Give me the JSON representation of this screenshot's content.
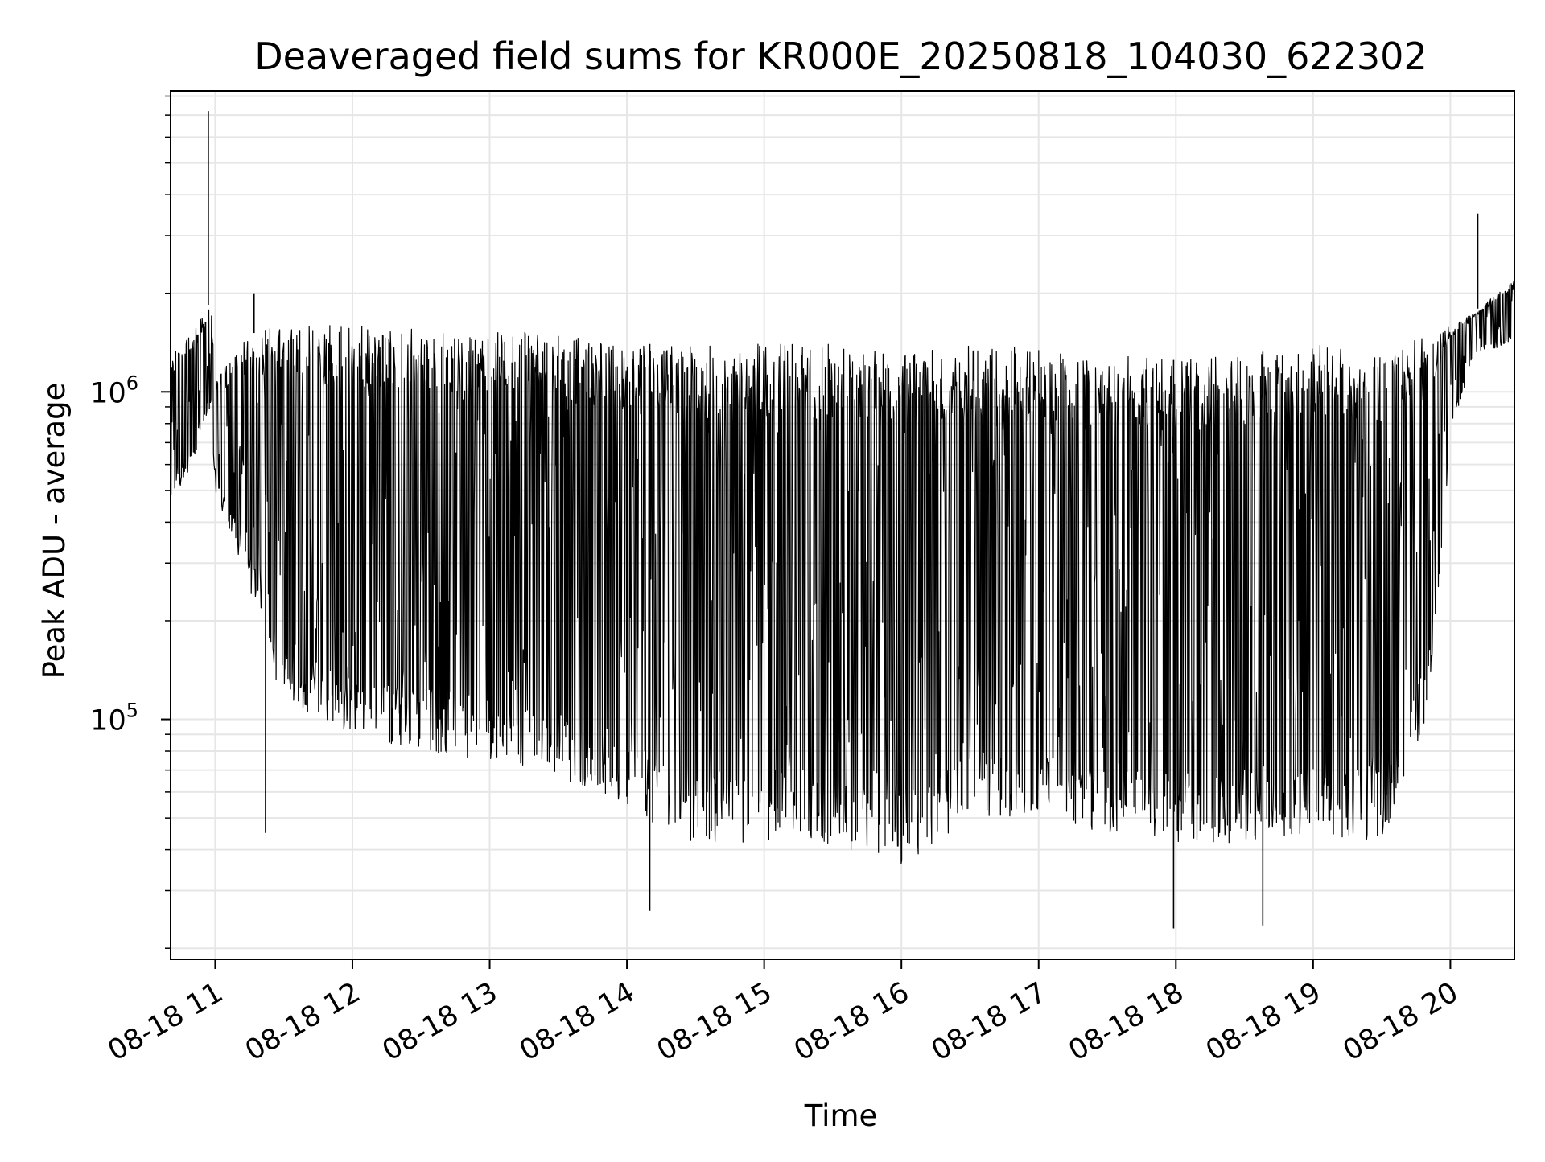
{
  "chart_data": {
    "type": "line",
    "title": "Deaveraged field sums for KR000E_20250818_104030_622302",
    "xlabel": "Time",
    "ylabel": "Peak ADU - average",
    "yscale": "log",
    "grid": true,
    "legend": "none",
    "line_color": "#000000",
    "grid_color": "#e6e6e6",
    "xlim": [
      "2025-08-18 10:40:30",
      "2025-08-18 20:28:00"
    ],
    "ylim": [
      18500,
      8300000
    ],
    "x_ticks": [
      {
        "value": "2025-08-18 11:00",
        "label": "08-18 11"
      },
      {
        "value": "2025-08-18 12:00",
        "label": "08-18 12"
      },
      {
        "value": "2025-08-18 13:00",
        "label": "08-18 13"
      },
      {
        "value": "2025-08-18 14:00",
        "label": "08-18 14"
      },
      {
        "value": "2025-08-18 15:00",
        "label": "08-18 15"
      },
      {
        "value": "2025-08-18 16:00",
        "label": "08-18 16"
      },
      {
        "value": "2025-08-18 17:00",
        "label": "08-18 17"
      },
      {
        "value": "2025-08-18 18:00",
        "label": "08-18 18"
      },
      {
        "value": "2025-08-18 19:00",
        "label": "08-18 19"
      },
      {
        "value": "2025-08-18 20:00",
        "label": "08-18 20"
      }
    ],
    "y_ticks": [
      {
        "value": 100000,
        "base": "10",
        "exp": "5"
      },
      {
        "value": 1000000,
        "base": "10",
        "exp": "6"
      }
    ],
    "envelope": {
      "x": [
        "2025-08-18 10:40",
        "2025-08-18 10:50",
        "2025-08-18 10:58",
        "2025-08-18 11:00",
        "2025-08-18 11:15",
        "2025-08-18 11:30",
        "2025-08-18 12:00",
        "2025-08-18 12:30",
        "2025-08-18 13:00",
        "2025-08-18 13:30",
        "2025-08-18 14:00",
        "2025-08-18 14:30",
        "2025-08-18 15:00",
        "2025-08-18 15:30",
        "2025-08-18 16:00",
        "2025-08-18 16:30",
        "2025-08-18 17:00",
        "2025-08-18 17:30",
        "2025-08-18 18:00",
        "2025-08-18 18:30",
        "2025-08-18 19:00",
        "2025-08-18 19:30",
        "2025-08-18 19:50",
        "2025-08-18 20:00",
        "2025-08-18 20:10",
        "2025-08-18 20:28"
      ],
      "upper": [
        1300000,
        1500000,
        1900000,
        1100000,
        1500000,
        1600000,
        1600000,
        1550000,
        1550000,
        1500000,
        1400000,
        1400000,
        1400000,
        1400000,
        1300000,
        1400000,
        1350000,
        1300000,
        1250000,
        1300000,
        1400000,
        1300000,
        1500000,
        1600000,
        1750000,
        2200000
      ],
      "lower": [
        450000,
        600000,
        900000,
        500000,
        250000,
        110000,
        90000,
        80000,
        75000,
        65000,
        52000,
        42000,
        42000,
        40000,
        36000,
        48000,
        50000,
        45000,
        42000,
        42000,
        45000,
        42000,
        100000,
        700000,
        1300000,
        1400000
      ]
    },
    "spikes": [
      {
        "x": "2025-08-18 10:57",
        "y": 7200000
      },
      {
        "x": "2025-08-18 11:17",
        "y": 2000000
      },
      {
        "x": "2025-08-18 20:12",
        "y": 3500000
      },
      {
        "x": "2025-08-18 11:22",
        "y": 45000
      },
      {
        "x": "2025-08-18 14:10",
        "y": 26000
      },
      {
        "x": "2025-08-18 17:59",
        "y": 23000
      },
      {
        "x": "2025-08-18 18:38",
        "y": 23500
      }
    ]
  }
}
